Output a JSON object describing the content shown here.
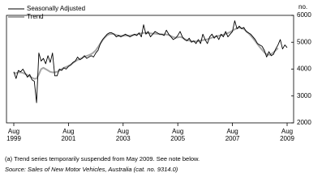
{
  "chart_data": {
    "type": "line",
    "y_label": "no.",
    "categories": [
      "Aug\n1999",
      null,
      null,
      null,
      null,
      null,
      null,
      null,
      null,
      null,
      null,
      null,
      null,
      null,
      null,
      null,
      null,
      null,
      null,
      null,
      null,
      null,
      null,
      null,
      "Aug\n2001",
      null,
      null,
      null,
      null,
      null,
      null,
      null,
      null,
      null,
      null,
      null,
      null,
      null,
      null,
      null,
      null,
      null,
      null,
      null,
      null,
      null,
      null,
      null,
      "Aug\n2003",
      null,
      null,
      null,
      null,
      null,
      null,
      null,
      null,
      null,
      null,
      null,
      null,
      null,
      null,
      null,
      null,
      null,
      null,
      null,
      null,
      null,
      null,
      null,
      "Aug\n2005",
      null,
      null,
      null,
      null,
      null,
      null,
      null,
      null,
      null,
      null,
      null,
      null,
      null,
      null,
      null,
      null,
      null,
      null,
      null,
      null,
      null,
      null,
      null,
      "Aug\n2007",
      null,
      null,
      null,
      null,
      null,
      null,
      null,
      null,
      null,
      null,
      null,
      null,
      null,
      null,
      null,
      null,
      null,
      null,
      null,
      null,
      null,
      null,
      null,
      "Aug\n2009"
    ],
    "series": [
      {
        "name": "Seasonally Adjusted",
        "color": "#000000",
        "values": [
          3900,
          3650,
          3950,
          3900,
          4000,
          3850,
          3700,
          3800,
          3600,
          3550,
          2750,
          4600,
          4300,
          4400,
          4200,
          4500,
          4250,
          4600,
          3750,
          3750,
          4000,
          3950,
          4050,
          4000,
          4100,
          4150,
          4250,
          4300,
          4450,
          4350,
          4400,
          4500,
          4400,
          4450,
          4500,
          4450,
          4600,
          4700,
          4950,
          5100,
          5200,
          5300,
          5350,
          5350,
          5300,
          5200,
          5250,
          5200,
          5250,
          5300,
          5250,
          5200,
          5250,
          5300,
          5250,
          5350,
          5200,
          5650,
          5300,
          5400,
          5200,
          5300,
          5400,
          5350,
          5300,
          5300,
          5250,
          5450,
          5300,
          5200,
          5100,
          5150,
          5250,
          5400,
          5200,
          5100,
          5050,
          5150,
          5000,
          5050,
          4950,
          5100,
          4950,
          5300,
          5100,
          4950,
          5200,
          5300,
          5150,
          5250,
          5100,
          5300,
          5200,
          5400,
          5200,
          5300,
          5400,
          5800,
          5500,
          5600,
          5500,
          5550,
          5400,
          5350,
          5300,
          5200,
          5100,
          4950,
          4900,
          4850,
          4700,
          4450,
          4650,
          4500,
          4550,
          4750,
          4900,
          5100,
          4750,
          4900,
          4800
        ]
      },
      {
        "name": "Trend",
        "color": "#a6a6a6",
        "values": [
          3850,
          3850,
          3880,
          3880,
          3860,
          3820,
          3780,
          3730,
          3680,
          3640,
          3650,
          3800,
          4000,
          4050,
          4000,
          3950,
          3900,
          3880,
          3880,
          3900,
          3950,
          4000,
          4050,
          4080,
          4120,
          4170,
          4230,
          4290,
          4340,
          4380,
          4420,
          4460,
          4490,
          4520,
          4560,
          4620,
          4700,
          4820,
          4950,
          5080,
          5180,
          5260,
          5300,
          5310,
          5300,
          5270,
          5250,
          5240,
          5240,
          5250,
          5250,
          5250,
          5260,
          5270,
          5290,
          5310,
          5330,
          5350,
          5350,
          5340,
          5330,
          5320,
          5320,
          5310,
          5300,
          5290,
          5290,
          5290,
          5270,
          5230,
          5190,
          5170,
          5180,
          5200,
          5170,
          5120,
          5080,
          5060,
          5040,
          5030,
          5030,
          5040,
          5060,
          5080,
          5090,
          5110,
          5140,
          5170,
          5200,
          5220,
          5240,
          5260,
          5280,
          5310,
          5340,
          5380,
          5430,
          5480,
          5520,
          5540,
          5530,
          5490,
          5420,
          5340,
          5250,
          5150,
          5040,
          4930,
          4820,
          4720,
          4620,
          4550,
          4530,
          4560,
          4620,
          4700,
          4780,
          null,
          null,
          null,
          null
        ]
      }
    ],
    "ylim": [
      2000,
      6000
    ],
    "yticks": [
      2000,
      3000,
      4000,
      5000,
      6000
    ],
    "footnote": "(a) Trend series temporarily suspended from May 2009. See note below.",
    "source": "Source: Sales of New Motor Vehicles, Australia (cat. no. 9314.0)"
  }
}
